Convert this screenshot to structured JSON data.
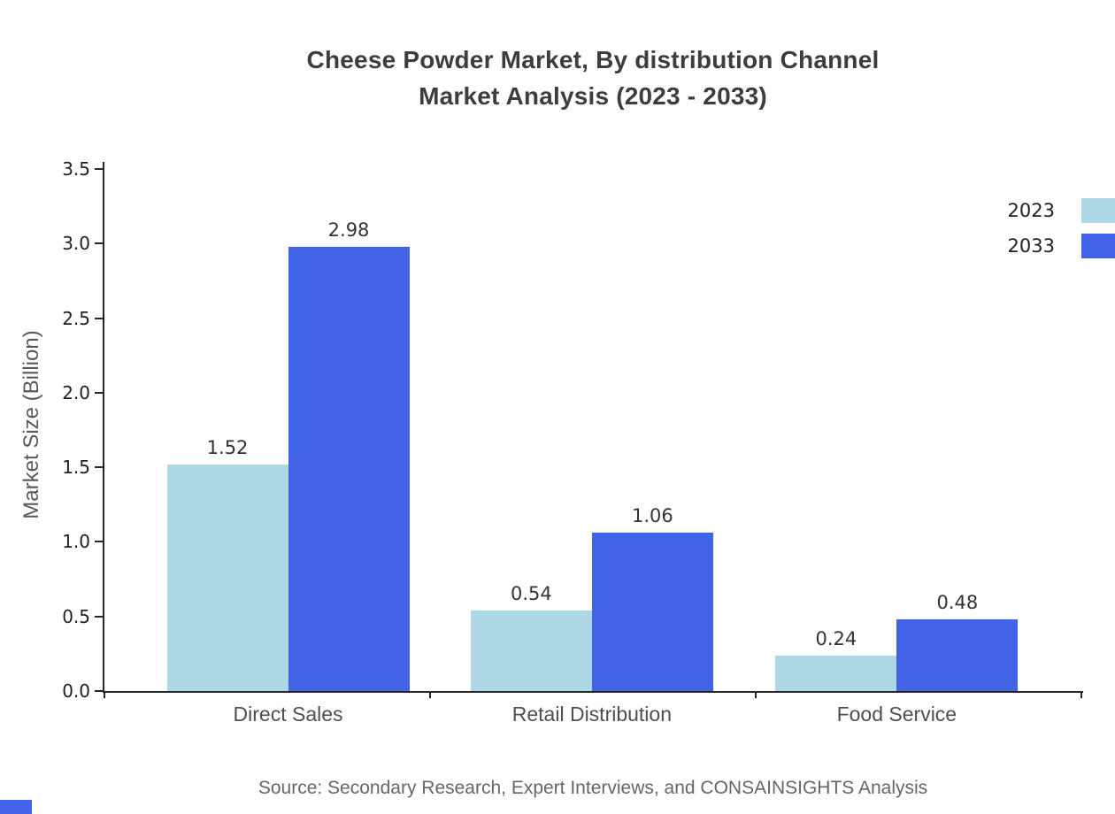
{
  "title": {
    "line1": "Cheese Powder Market, By distribution Channel",
    "line2": "Market Analysis (2023 - 2033)"
  },
  "source": "Source: Secondary Research, Expert Interviews, and CONSAINSIGHTS Analysis",
  "chart_data": {
    "type": "bar",
    "title": "Cheese Powder Market, By distribution Channel Market Analysis (2023 - 2033)",
    "categories": [
      "Direct Sales",
      "Retail Distribution",
      "Food Service"
    ],
    "series": [
      {
        "name": "2023",
        "color": "#ADD8E6",
        "values": [
          1.52,
          0.54,
          0.24
        ]
      },
      {
        "name": "2033",
        "color": "#4263E6",
        "values": [
          2.98,
          1.06,
          0.48
        ]
      }
    ],
    "xlabel": "",
    "ylabel": "Market Size (Billion)",
    "ylim": [
      0,
      3.5
    ],
    "yticks": [
      0.0,
      0.5,
      1.0,
      1.5,
      2.0,
      2.5,
      3.0,
      3.5
    ],
    "grid": false,
    "legend_position": "top-right",
    "value_label_decimals": 2
  }
}
